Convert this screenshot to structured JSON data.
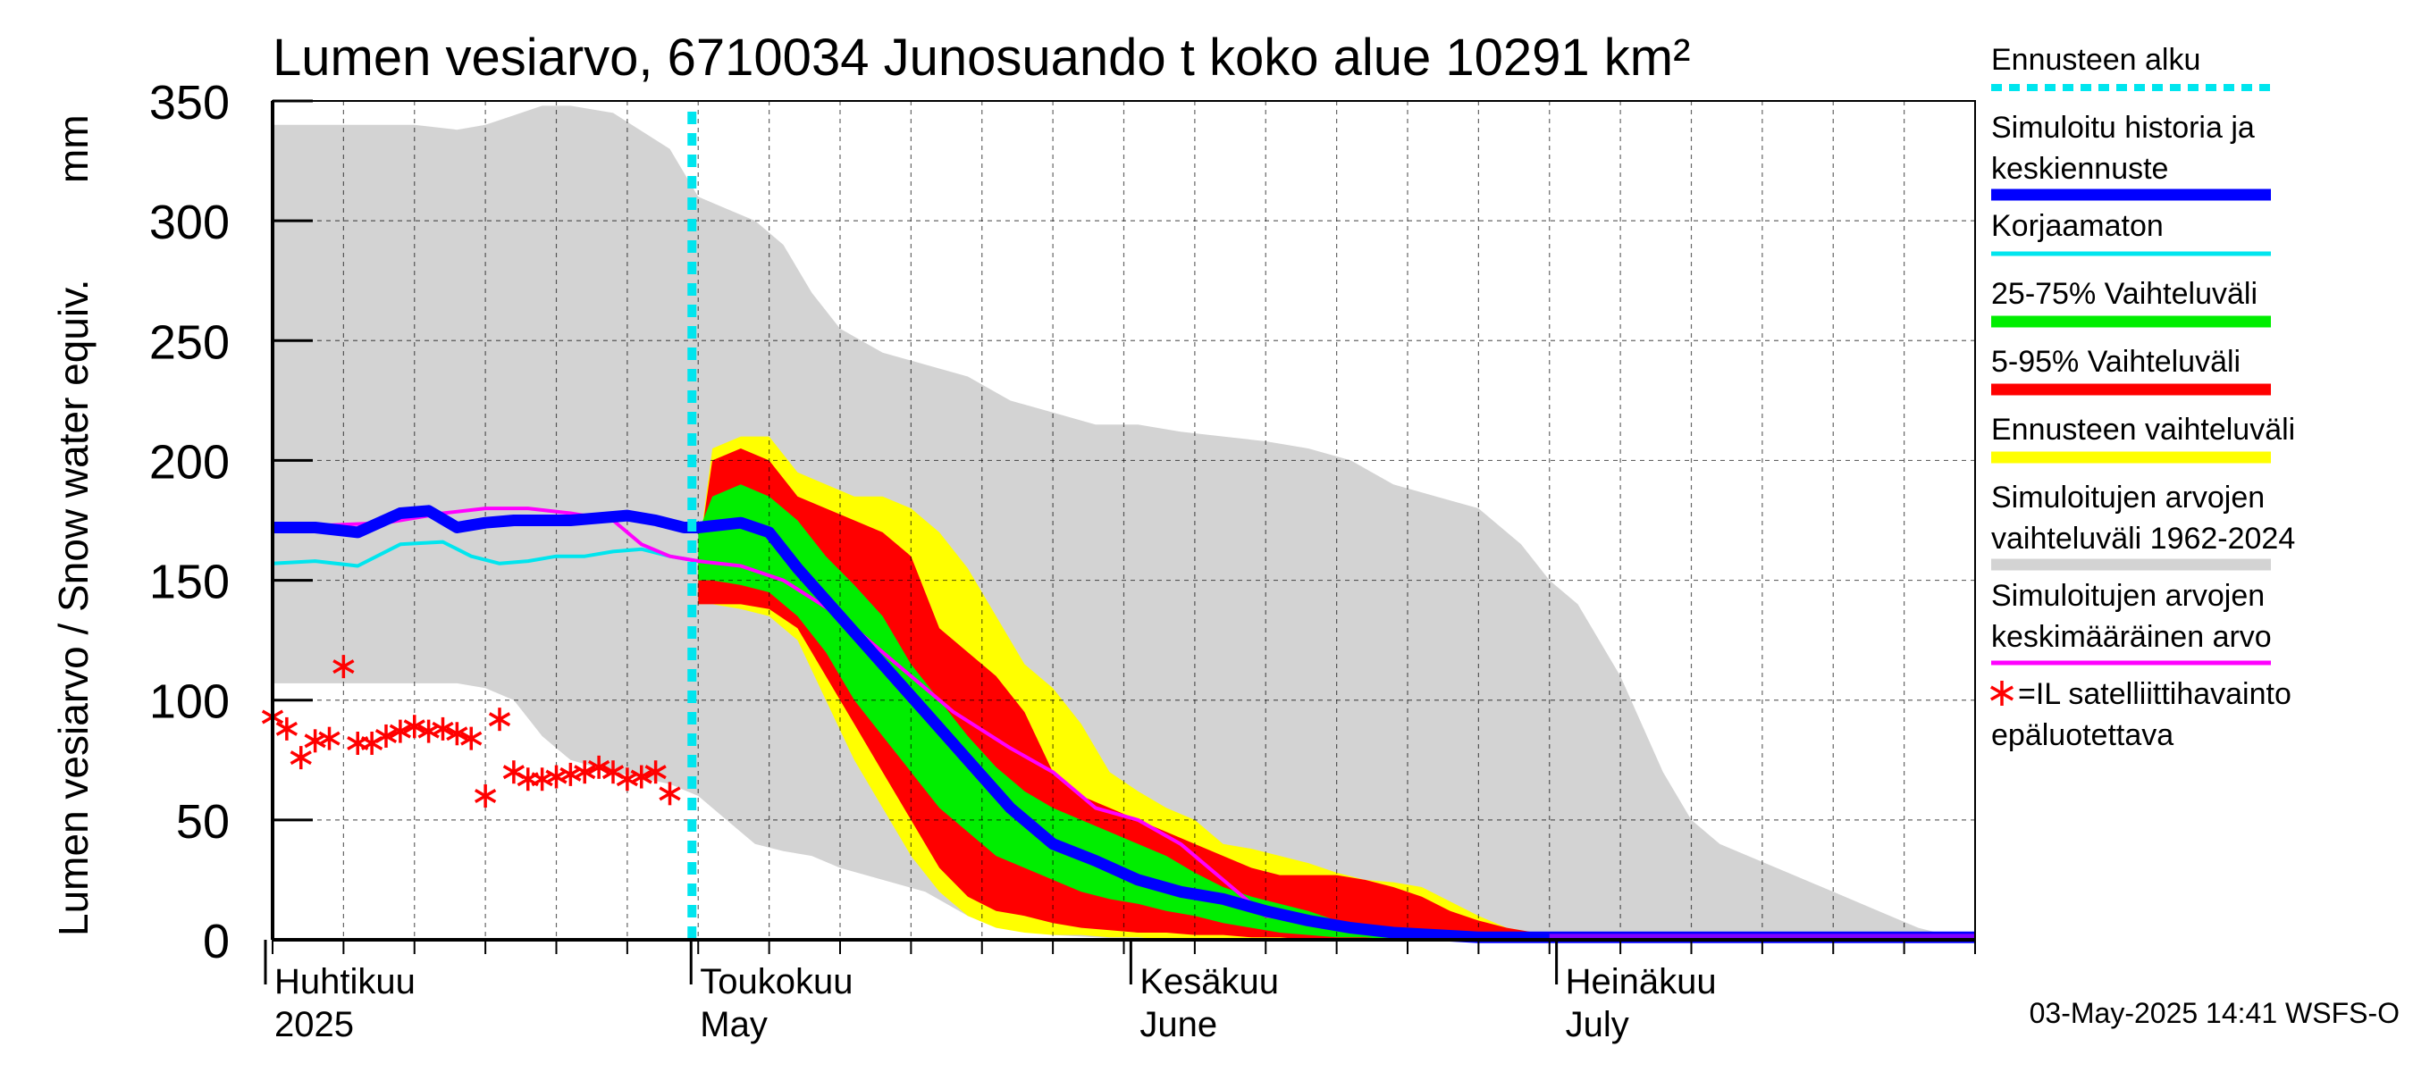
{
  "chart_data": {
    "type": "area",
    "title": "Lumen vesiarvo, 6710034 Junosuando t koko alue 10291 km²",
    "ylabel_fi": "Lumen vesiarvo / Snow water equiv.",
    "ylabel_unit": "mm",
    "ylim": [
      0,
      350
    ],
    "yticks": [
      "0",
      "50",
      "100",
      "150",
      "200",
      "250",
      "300",
      "350"
    ],
    "x_range_days": [
      0,
      120
    ],
    "month_labels": [
      {
        "top": "Huhtikuu",
        "bottom": "2025",
        "day": 0
      },
      {
        "top": "Toukokuu",
        "bottom": "May",
        "day": 30
      },
      {
        "top": "Kesäkuu",
        "bottom": "June",
        "day": 61
      },
      {
        "top": "Heinäkuu",
        "bottom": "July",
        "day": 91
      }
    ],
    "forecast_start_day": 30,
    "timestamp": "03-May-2025 14:41 WSFS-O",
    "colors": {
      "forecast_start": "#00e5ee",
      "simulated": "#0000ff",
      "uncorrected": "#00e5ee",
      "range_25_75": "#00ee00",
      "range_5_95": "#ff0000",
      "forecast_range": "#ffff00",
      "historic_range": "#d3d3d3",
      "historic_mean": "#ff00ff",
      "satellite": "#ff0000"
    },
    "series": [
      {
        "name": "historic_range",
        "x": [
          0,
          10,
          13,
          15,
          17,
          19,
          21,
          24,
          28,
          30,
          32,
          34,
          36,
          38,
          40,
          43,
          46,
          49,
          52,
          55,
          58,
          61,
          64,
          67,
          70,
          73,
          76,
          79,
          82,
          85,
          88,
          90,
          92,
          95,
          98,
          100,
          102,
          104,
          106,
          108,
          110,
          112,
          114,
          116,
          118,
          120
        ],
        "upper": [
          340,
          340,
          338,
          340,
          344,
          348,
          348,
          345,
          330,
          310,
          305,
          300,
          290,
          270,
          255,
          245,
          240,
          235,
          225,
          220,
          215,
          215,
          212,
          210,
          208,
          205,
          200,
          190,
          185,
          180,
          165,
          150,
          140,
          110,
          70,
          50,
          40,
          35,
          30,
          25,
          20,
          15,
          10,
          5,
          2,
          1
        ],
        "lower": [
          107,
          107,
          107,
          105,
          100,
          85,
          75,
          70,
          65,
          60,
          50,
          40,
          37,
          35,
          30,
          25,
          20,
          10,
          5,
          2,
          1,
          0,
          0,
          0,
          0,
          0,
          0,
          0,
          0,
          0,
          0,
          0,
          0,
          0,
          0,
          0,
          0,
          0,
          0,
          0,
          0,
          0,
          0,
          0,
          0,
          0
        ]
      },
      {
        "name": "forecast_range",
        "x": [
          30,
          31,
          33,
          35,
          37,
          39,
          41,
          43,
          45,
          47,
          49,
          51,
          53,
          55,
          57,
          59,
          61,
          63,
          65,
          67,
          69,
          71,
          73,
          75,
          77,
          79,
          81,
          83,
          85,
          87,
          89,
          91,
          93,
          95,
          97,
          99,
          101,
          103,
          105
        ],
        "upper": [
          160,
          205,
          210,
          210,
          195,
          190,
          185,
          185,
          180,
          170,
          155,
          135,
          115,
          105,
          90,
          70,
          62,
          55,
          50,
          40,
          38,
          35,
          32,
          28,
          25,
          24,
          22,
          16,
          10,
          5,
          3,
          2,
          2,
          2,
          2,
          2,
          1,
          0,
          0
        ],
        "lower": [
          140,
          140,
          138,
          135,
          125,
          100,
          75,
          55,
          35,
          20,
          10,
          5,
          3,
          2,
          2,
          1,
          1,
          0,
          0,
          0,
          0,
          0,
          0,
          0,
          0,
          0,
          0,
          0,
          0,
          0,
          0,
          0,
          0,
          0,
          0,
          0,
          0,
          0,
          0
        ]
      },
      {
        "name": "range_5_95",
        "x": [
          30,
          31,
          33,
          35,
          37,
          39,
          41,
          43,
          45,
          47,
          49,
          51,
          53,
          55,
          57,
          59,
          61,
          63,
          65,
          67,
          69,
          71,
          73,
          75,
          77,
          79,
          81,
          83,
          85,
          87,
          89,
          91,
          93,
          95,
          97,
          99
        ],
        "upper": [
          160,
          200,
          205,
          200,
          185,
          180,
          175,
          170,
          160,
          130,
          120,
          110,
          95,
          70,
          60,
          55,
          50,
          45,
          40,
          35,
          30,
          27,
          27,
          27,
          25,
          22,
          18,
          12,
          8,
          5,
          3,
          2,
          2,
          1,
          1,
          0
        ],
        "lower": [
          140,
          140,
          140,
          138,
          130,
          110,
          90,
          70,
          50,
          30,
          18,
          12,
          10,
          7,
          5,
          4,
          3,
          3,
          2,
          2,
          1,
          1,
          0,
          0,
          0,
          0,
          0,
          0,
          0,
          0,
          0,
          0,
          0,
          0,
          0,
          0
        ]
      },
      {
        "name": "range_25_75",
        "x": [
          30,
          31,
          33,
          35,
          37,
          39,
          41,
          43,
          45,
          47,
          49,
          51,
          53,
          55,
          57,
          59,
          61,
          63,
          65,
          67,
          69,
          71,
          73,
          75,
          77,
          79,
          81,
          83,
          85,
          87,
          89,
          91,
          93
        ],
        "upper": [
          170,
          185,
          190,
          185,
          175,
          160,
          148,
          135,
          115,
          100,
          85,
          72,
          62,
          55,
          50,
          45,
          40,
          35,
          28,
          22,
          18,
          15,
          12,
          8,
          5,
          3,
          2,
          1,
          1,
          0,
          0,
          0,
          0
        ],
        "lower": [
          150,
          150,
          148,
          145,
          135,
          120,
          100,
          85,
          70,
          55,
          45,
          35,
          30,
          25,
          20,
          17,
          15,
          12,
          10,
          7,
          5,
          3,
          2,
          1,
          1,
          0,
          0,
          0,
          0,
          0,
          0,
          0,
          0
        ]
      },
      {
        "name": "historic_mean",
        "x": [
          0,
          4,
          8,
          12,
          15,
          18,
          21,
          24,
          26,
          28,
          30,
          33,
          36,
          40,
          44,
          48,
          52,
          55,
          58,
          61,
          64,
          67,
          70,
          73,
          76,
          79,
          82,
          85,
          88,
          91,
          95,
          100,
          110,
          120
        ],
        "values": [
          172,
          173,
          174,
          178,
          180,
          180,
          178,
          175,
          165,
          160,
          158,
          156,
          150,
          135,
          115,
          95,
          80,
          70,
          55,
          50,
          40,
          25,
          10,
          8,
          5,
          3,
          2,
          1,
          1,
          1,
          1,
          1,
          1,
          1
        ]
      },
      {
        "name": "uncorrected",
        "x": [
          0,
          3,
          6,
          9,
          12,
          14,
          16,
          18,
          20,
          22,
          24,
          26,
          28,
          30
        ],
        "values": [
          157,
          158,
          156,
          165,
          166,
          160,
          157,
          158,
          160,
          160,
          162,
          163,
          160,
          158
        ]
      },
      {
        "name": "simulated",
        "x": [
          0,
          3,
          6,
          9,
          11,
          13,
          15,
          17,
          19,
          21,
          23,
          25,
          27,
          29,
          30,
          33,
          35,
          37,
          40,
          43,
          46,
          49,
          52,
          55,
          58,
          61,
          64,
          67,
          70,
          73,
          76,
          79,
          82,
          85,
          88,
          91,
          95,
          100,
          110,
          120
        ],
        "values": [
          172,
          172,
          170,
          178,
          179,
          172,
          174,
          175,
          175,
          175,
          176,
          177,
          175,
          172,
          172,
          174,
          170,
          155,
          135,
          115,
          95,
          75,
          55,
          40,
          33,
          25,
          20,
          17,
          12,
          8,
          5,
          3,
          2,
          1,
          1,
          1,
          1,
          1,
          1,
          1
        ]
      }
    ],
    "satellite_points": {
      "x": [
        0,
        1,
        2,
        3,
        4,
        5,
        6,
        7,
        8,
        9,
        10,
        11,
        12,
        13,
        14,
        15,
        16,
        17,
        18,
        19,
        20,
        21,
        22,
        23,
        24,
        25,
        26,
        27,
        28
      ],
      "y": [
        93,
        88,
        76,
        83,
        84,
        114,
        82,
        82,
        85,
        87,
        89,
        87,
        88,
        86,
        84,
        60,
        92,
        70,
        67,
        67,
        68,
        69,
        70,
        72,
        70,
        67,
        68,
        70,
        61
      ]
    },
    "legend": [
      {
        "label": "Ennusteen alku",
        "style": "dotted",
        "color": "#00e5ee"
      },
      {
        "label": "Simuloitu historia ja",
        "label2": "keskiennuste",
        "style": "thick",
        "color": "#0000ff"
      },
      {
        "label": "Korjaamaton",
        "style": "line",
        "color": "#00e5ee"
      },
      {
        "label": "25-75% Vaihteluväli",
        "style": "band",
        "color": "#00ee00"
      },
      {
        "label": "5-95% Vaihteluväli",
        "style": "band",
        "color": "#ff0000"
      },
      {
        "label": "Ennusteen vaihteluväli",
        "style": "band",
        "color": "#ffff00"
      },
      {
        "label": "Simuloitujen arvojen",
        "label2": "vaihteluväli 1962-2024",
        "style": "band",
        "color": "#d3d3d3"
      },
      {
        "label": "Simuloitujen arvojen",
        "label2": "keskimääräinen arvo",
        "style": "line",
        "color": "#ff00ff"
      },
      {
        "label": "=IL satelliittihavainto",
        "label2": "epäluotettava",
        "style": "star",
        "color": "#ff0000"
      }
    ]
  }
}
